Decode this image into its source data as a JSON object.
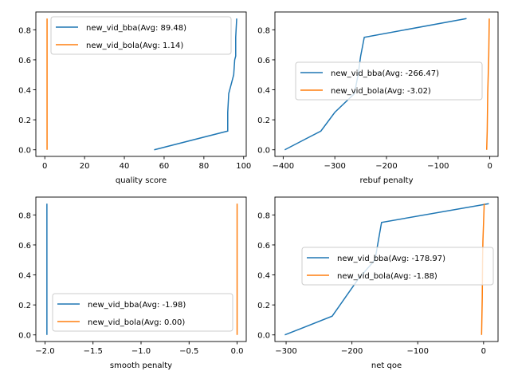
{
  "chart_data": [
    {
      "type": "line",
      "xlabel": "quality score",
      "ylabel": "",
      "xlim": [
        -4.5,
        101.3
      ],
      "ylim": [
        -0.044,
        0.919
      ],
      "xticks": [
        0,
        20,
        40,
        60,
        80,
        100
      ],
      "yticks": [
        0.0,
        0.2,
        0.4,
        0.6,
        0.8
      ],
      "legend_position": "top-center",
      "series": [
        {
          "name": "new_vid_bba(Avg: 89.48)",
          "color": "#1f77b4",
          "x": [
            55,
            92,
            92,
            92.5,
            93,
            95,
            95.5,
            96,
            96,
            96.5
          ],
          "y": [
            0.0,
            0.125,
            0.25,
            0.375,
            0.4,
            0.5,
            0.6,
            0.625,
            0.75,
            0.875
          ]
        },
        {
          "name": "new_vid_bola(Avg: 1.14)",
          "color": "#ff7f0e",
          "x": [
            1.14,
            1.14
          ],
          "y": [
            0.0,
            0.875
          ]
        }
      ]
    },
    {
      "type": "line",
      "xlabel": "rebuf penalty",
      "ylabel": "",
      "xlim": [
        -416,
        16
      ],
      "ylim": [
        -0.044,
        0.919
      ],
      "xticks": [
        -400,
        -300,
        -200,
        -100,
        0
      ],
      "yticks": [
        0.0,
        0.2,
        0.4,
        0.6,
        0.8
      ],
      "legend_position": "center",
      "series": [
        {
          "name": "new_vid_bba(Avg: -266.47)",
          "color": "#1f77b4",
          "x": [
            -397,
            -327,
            -300,
            -262,
            -255,
            -250,
            -243,
            -45
          ],
          "y": [
            0.0,
            0.125,
            0.25,
            0.375,
            0.5,
            0.625,
            0.75,
            0.875
          ]
        },
        {
          "name": "new_vid_bola(Avg: -3.02)",
          "color": "#ff7f0e",
          "x": [
            -6,
            -5,
            -4,
            -3,
            -2,
            -1
          ],
          "y": [
            0.0,
            0.125,
            0.375,
            0.5,
            0.625,
            0.875
          ]
        }
      ]
    },
    {
      "type": "line",
      "xlabel": "smooth penalty",
      "ylabel": "",
      "xlim": [
        -2.095,
        0.095
      ],
      "ylim": [
        -0.044,
        0.919
      ],
      "xticks": [
        -2.0,
        -1.5,
        -1.0,
        -0.5,
        0.0
      ],
      "xtick_labels": [
        "−2.0",
        "−1.5",
        "−1.0",
        "−0.5",
        "0.0"
      ],
      "yticks": [
        0.0,
        0.2,
        0.4,
        0.6,
        0.8
      ],
      "legend_position": "lower-center",
      "series": [
        {
          "name": "new_vid_bba(Avg: -1.98)",
          "color": "#1f77b4",
          "x": [
            -1.98,
            -1.98
          ],
          "y": [
            0.0,
            0.875
          ]
        },
        {
          "name": "new_vid_bola(Avg: 0.00)",
          "color": "#ff7f0e",
          "x": [
            0.0,
            0.0
          ],
          "y": [
            0.0,
            0.875
          ]
        }
      ]
    },
    {
      "type": "line",
      "xlabel": "net qoe",
      "ylabel": "",
      "xlim": [
        -317,
        22
      ],
      "ylim": [
        -0.044,
        0.919
      ],
      "xticks": [
        -300,
        -200,
        -100,
        0
      ],
      "yticks": [
        0.0,
        0.2,
        0.4,
        0.6,
        0.8
      ],
      "legend_position": "center",
      "series": [
        {
          "name": "new_vid_bba(Avg: -178.97)",
          "color": "#1f77b4",
          "x": [
            -302,
            -230,
            -210,
            -190,
            -165,
            -160,
            -155,
            8
          ],
          "y": [
            0.0,
            0.125,
            0.25,
            0.375,
            0.5,
            0.625,
            0.75,
            0.875
          ]
        },
        {
          "name": "new_vid_bola(Avg: -1.88)",
          "color": "#ff7f0e",
          "x": [
            -3,
            -2.5,
            -2,
            -1.5,
            -1,
            0,
            1
          ],
          "y": [
            0.0,
            0.125,
            0.25,
            0.5,
            0.625,
            0.75,
            0.875
          ]
        }
      ]
    }
  ]
}
